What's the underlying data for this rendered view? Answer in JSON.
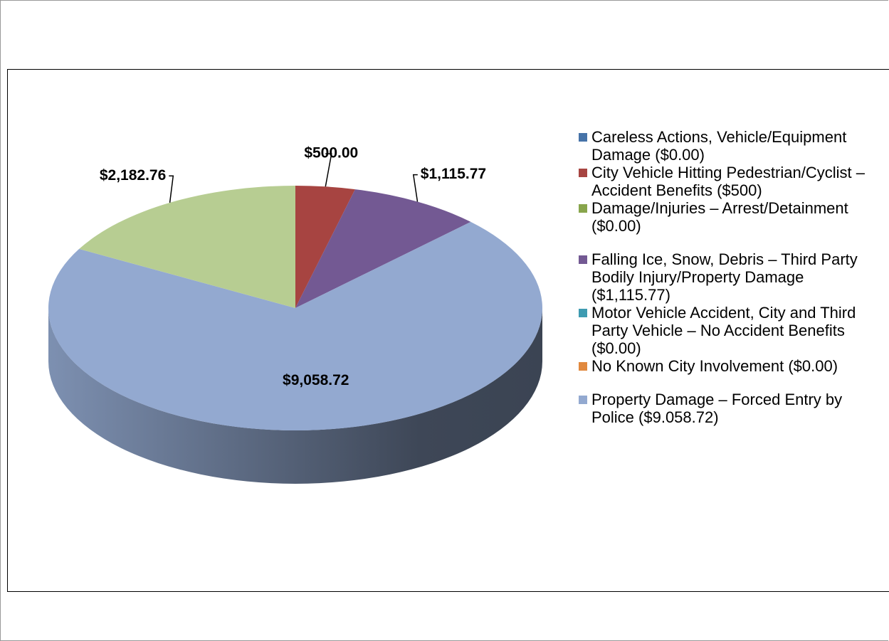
{
  "chart_data": {
    "type": "pie3d",
    "slices": [
      {
        "value": 500,
        "value_label": "$500.00",
        "color": "#a74441"
      },
      {
        "value": 1115.77,
        "value_label": "$1,115.77",
        "color": "#735993"
      },
      {
        "value": 9058.72,
        "value_label": "$9,058.72",
        "color": "#93a9d0"
      },
      {
        "value": 2182.76,
        "value_label": "$2,182.76",
        "color": "#b7cd92"
      }
    ],
    "legend": [
      {
        "name": "Careless Actions, Vehicle/Equipment Damage ($0.00)",
        "color": "#4673a8"
      },
      {
        "name": "City Vehicle Hitting Pedestrian/Cyclist – Accident Benefits ($500)",
        "color": "#a74441"
      },
      {
        "name": "Damage/Injuries – Arrest/Detainment ($0.00)",
        "color": "#88a54c"
      },
      {
        "name": "Falling Ice, Snow, Debris – Third Party Bodily Injury/Property Damage ($1,115.77)",
        "color": "#735993"
      },
      {
        "name": "Motor Vehicle Accident, City and Third Party Vehicle – No Accident Benefits ($0.00)",
        "color": "#3e9bb1"
      },
      {
        "name": "No Known City Involvement ($0.00)",
        "color": "#e1893e"
      },
      {
        "name": "Property Damage – Forced Entry by Police ($9.058.72)",
        "color": "#93a9d0"
      }
    ]
  }
}
